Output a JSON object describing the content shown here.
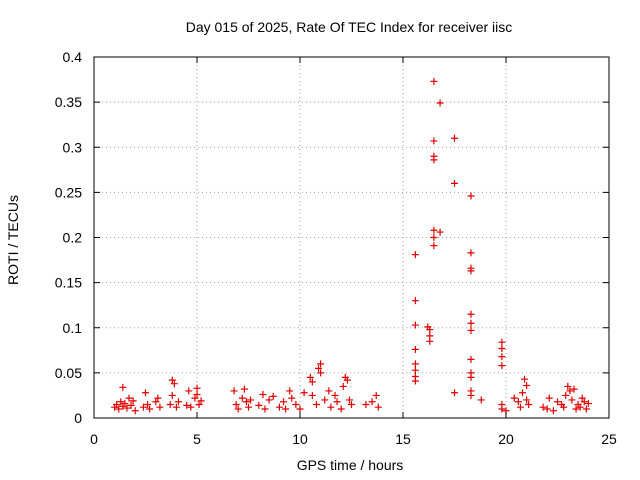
{
  "chart_data": {
    "type": "scatter",
    "title": "Day 015 of 2025, Rate Of TEC Index for receiver iisc",
    "xlabel": "GPS time / hours",
    "ylabel": "ROTI / TECUs",
    "xlim": [
      0,
      25
    ],
    "ylim": [
      0,
      0.4
    ],
    "xticks": [
      0,
      5,
      10,
      15,
      20,
      25
    ],
    "yticks": [
      0,
      0.05,
      0.1,
      0.15,
      0.2,
      0.25,
      0.3,
      0.35,
      0.4
    ],
    "xtick_labels": [
      "0",
      "5",
      "10",
      "15",
      "20",
      "25"
    ],
    "ytick_labels": [
      "0",
      "0.05",
      "0.1",
      "0.15",
      "0.2",
      "0.25",
      "0.3",
      "0.35",
      "0.4"
    ],
    "grid": true,
    "marker": "+",
    "marker_color": "#e00000",
    "series": [
      {
        "name": "ROTI",
        "points": [
          [
            1.0,
            0.012
          ],
          [
            1.1,
            0.015
          ],
          [
            1.2,
            0.01
          ],
          [
            1.3,
            0.018
          ],
          [
            1.4,
            0.013
          ],
          [
            1.4,
            0.034
          ],
          [
            1.5,
            0.016
          ],
          [
            1.6,
            0.011
          ],
          [
            1.7,
            0.022
          ],
          [
            1.8,
            0.014
          ],
          [
            1.9,
            0.019
          ],
          [
            2.0,
            0.008
          ],
          [
            2.4,
            0.012
          ],
          [
            2.5,
            0.028
          ],
          [
            2.6,
            0.015
          ],
          [
            2.7,
            0.01
          ],
          [
            3.0,
            0.018
          ],
          [
            3.1,
            0.022
          ],
          [
            3.2,
            0.012
          ],
          [
            3.7,
            0.015
          ],
          [
            3.8,
            0.042
          ],
          [
            3.9,
            0.038
          ],
          [
            3.8,
            0.025
          ],
          [
            4.0,
            0.012
          ],
          [
            4.1,
            0.018
          ],
          [
            4.5,
            0.014
          ],
          [
            4.6,
            0.03
          ],
          [
            4.7,
            0.012
          ],
          [
            4.9,
            0.022
          ],
          [
            5.0,
            0.033
          ],
          [
            5.0,
            0.026
          ],
          [
            5.1,
            0.015
          ],
          [
            5.2,
            0.019
          ],
          [
            6.8,
            0.03
          ],
          [
            6.9,
            0.015
          ],
          [
            7.0,
            0.01
          ],
          [
            7.2,
            0.022
          ],
          [
            7.3,
            0.032
          ],
          [
            7.4,
            0.018
          ],
          [
            7.5,
            0.012
          ],
          [
            7.6,
            0.02
          ],
          [
            8.0,
            0.014
          ],
          [
            8.2,
            0.026
          ],
          [
            8.3,
            0.01
          ],
          [
            8.5,
            0.02
          ],
          [
            8.7,
            0.024
          ],
          [
            9.0,
            0.012
          ],
          [
            9.2,
            0.018
          ],
          [
            9.3,
            0.01
          ],
          [
            9.5,
            0.03
          ],
          [
            9.6,
            0.022
          ],
          [
            9.8,
            0.015
          ],
          [
            10.0,
            0.01
          ],
          [
            10.2,
            0.028
          ],
          [
            10.5,
            0.045
          ],
          [
            10.6,
            0.04
          ],
          [
            10.6,
            0.025
          ],
          [
            10.8,
            0.015
          ],
          [
            10.9,
            0.055
          ],
          [
            11.0,
            0.06
          ],
          [
            11.0,
            0.05
          ],
          [
            11.2,
            0.02
          ],
          [
            11.4,
            0.03
          ],
          [
            11.5,
            0.012
          ],
          [
            11.7,
            0.025
          ],
          [
            11.8,
            0.018
          ],
          [
            12.0,
            0.01
          ],
          [
            12.1,
            0.035
          ],
          [
            12.2,
            0.045
          ],
          [
            12.3,
            0.042
          ],
          [
            12.4,
            0.02
          ],
          [
            12.5,
            0.015
          ],
          [
            13.2,
            0.015
          ],
          [
            13.5,
            0.018
          ],
          [
            13.7,
            0.025
          ],
          [
            13.8,
            0.012
          ],
          [
            15.6,
            0.181
          ],
          [
            15.6,
            0.13
          ],
          [
            15.6,
            0.103
          ],
          [
            15.6,
            0.076
          ],
          [
            15.6,
            0.06
          ],
          [
            15.6,
            0.053
          ],
          [
            15.6,
            0.046
          ],
          [
            15.6,
            0.041
          ],
          [
            16.2,
            0.101
          ],
          [
            16.3,
            0.098
          ],
          [
            16.3,
            0.091
          ],
          [
            16.3,
            0.085
          ],
          [
            16.5,
            0.373
          ],
          [
            16.5,
            0.307
          ],
          [
            16.5,
            0.29
          ],
          [
            16.5,
            0.286
          ],
          [
            16.5,
            0.208
          ],
          [
            16.5,
            0.2
          ],
          [
            16.5,
            0.191
          ],
          [
            16.8,
            0.349
          ],
          [
            16.8,
            0.206
          ],
          [
            17.5,
            0.31
          ],
          [
            17.5,
            0.26
          ],
          [
            17.5,
            0.028
          ],
          [
            18.3,
            0.246
          ],
          [
            18.3,
            0.183
          ],
          [
            18.3,
            0.166
          ],
          [
            18.3,
            0.163
          ],
          [
            18.3,
            0.115
          ],
          [
            18.3,
            0.105
          ],
          [
            18.3,
            0.097
          ],
          [
            18.3,
            0.065
          ],
          [
            18.3,
            0.05
          ],
          [
            18.3,
            0.045
          ],
          [
            18.3,
            0.03
          ],
          [
            18.3,
            0.025
          ],
          [
            18.8,
            0.02
          ],
          [
            19.8,
            0.084
          ],
          [
            19.8,
            0.077
          ],
          [
            19.8,
            0.068
          ],
          [
            19.8,
            0.058
          ],
          [
            19.8,
            0.015
          ],
          [
            19.8,
            0.01
          ],
          [
            20.0,
            0.008
          ],
          [
            20.4,
            0.022
          ],
          [
            20.6,
            0.018
          ],
          [
            20.7,
            0.012
          ],
          [
            20.8,
            0.028
          ],
          [
            20.9,
            0.043
          ],
          [
            21.0,
            0.036
          ],
          [
            21.0,
            0.02
          ],
          [
            21.1,
            0.015
          ],
          [
            21.8,
            0.012
          ],
          [
            22.0,
            0.01
          ],
          [
            22.1,
            0.022
          ],
          [
            22.3,
            0.008
          ],
          [
            22.5,
            0.018
          ],
          [
            22.7,
            0.015
          ],
          [
            22.8,
            0.012
          ],
          [
            22.9,
            0.025
          ],
          [
            23.0,
            0.035
          ],
          [
            23.1,
            0.03
          ],
          [
            23.2,
            0.02
          ],
          [
            23.3,
            0.032
          ],
          [
            23.4,
            0.01
          ],
          [
            23.5,
            0.015
          ],
          [
            23.6,
            0.012
          ],
          [
            23.7,
            0.022
          ],
          [
            23.8,
            0.018
          ],
          [
            23.9,
            0.01
          ],
          [
            24.0,
            0.016
          ]
        ]
      }
    ]
  }
}
